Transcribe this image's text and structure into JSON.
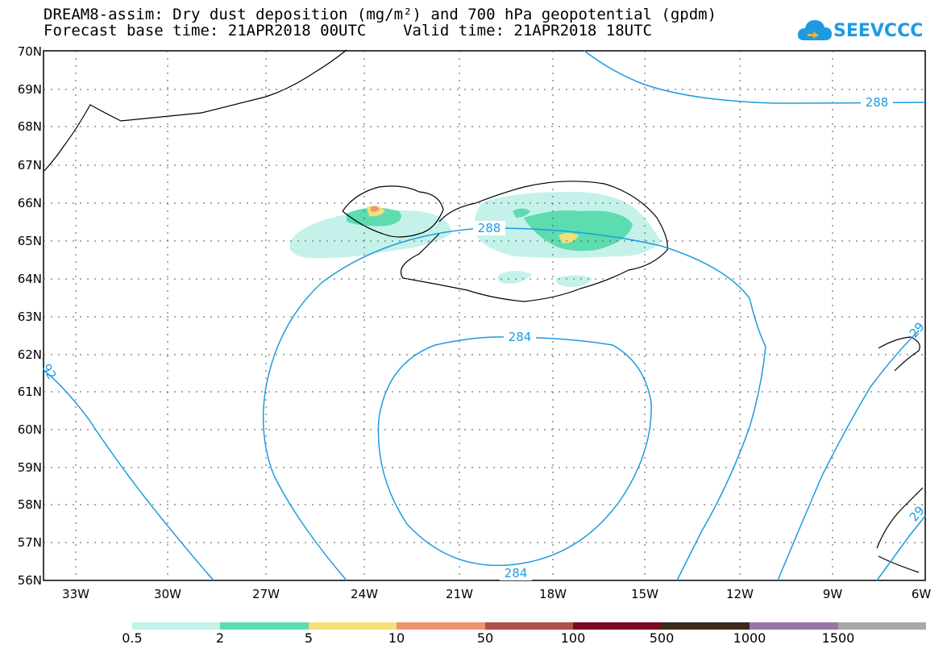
{
  "header": {
    "title_line1": "DREAM8-assim: Dry dust deposition (mg/m²) and 700 hPa geopotential (gpdm)",
    "title_line2": "Forecast base time: 21APR2018 00UTC    Valid time: 21APR2018 18UTC"
  },
  "logo": {
    "text": "SEEVCCC",
    "icon": "cloud-icon"
  },
  "map": {
    "lat_labels": [
      "70N",
      "69N",
      "68N",
      "67N",
      "66N",
      "65N",
      "64N",
      "63N",
      "62N",
      "61N",
      "60N",
      "59N",
      "58N",
      "57N",
      "56N"
    ],
    "lon_labels": [
      "33W",
      "30W",
      "27W",
      "24W",
      "21W",
      "18W",
      "15W",
      "12W",
      "9W",
      "6W"
    ],
    "contour_labels": [
      "288",
      "288",
      "284",
      "284",
      "92",
      "29",
      "29"
    ]
  },
  "colorbar": {
    "colors": [
      "#c4f2ea",
      "#5ddcb0",
      "#f3e07a",
      "#ee9570",
      "#b0504a",
      "#7a0a20",
      "#3b2a1c",
      "#9a76a3",
      "#a8a8a8"
    ],
    "labels": [
      "0.5",
      "2",
      "5",
      "10",
      "50",
      "100",
      "500",
      "1000",
      "1500"
    ]
  }
}
